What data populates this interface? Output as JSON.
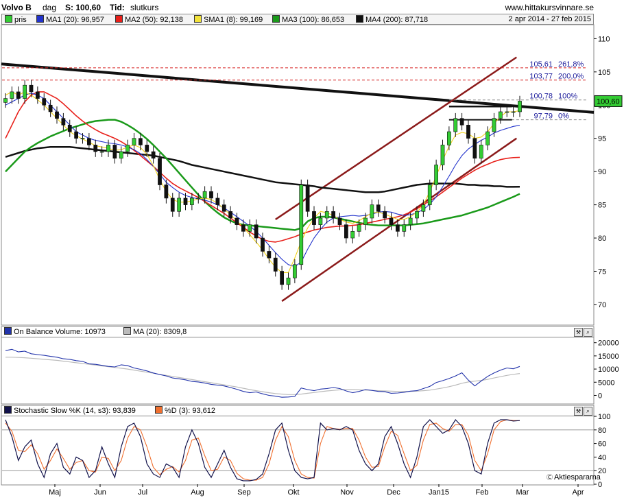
{
  "header": {
    "ticker": "Volvo B",
    "period": "dag",
    "last_label": "S: 100,60",
    "time_label": "Tid:",
    "time_value": "slutkurs",
    "site": "www.hittakursvinnare.se"
  },
  "legend": {
    "items": [
      {
        "label": "pris",
        "color": "#33cc33"
      },
      {
        "label": "MA1 (20): 96,957",
        "color": "#2233cc"
      },
      {
        "label": "MA2 (50): 92,138",
        "color": "#e8201a"
      },
      {
        "label": "SMA1 (8): 99,169",
        "color": "#f2e23a"
      },
      {
        "label": "MA3 (100): 86,653",
        "color": "#1a9a1a"
      },
      {
        "label": "MA4 (200): 87,718",
        "color": "#111111"
      }
    ],
    "date_range": "2 apr 2014 - 27 feb 2015"
  },
  "obv_legend": {
    "items": [
      {
        "label": "On Balance Volume: 10973",
        "color": "#2233aa"
      },
      {
        "label": "MA (20): 8309,8",
        "color": "#bbbbbb"
      }
    ]
  },
  "stoch_legend": {
    "items": [
      {
        "label": "Stochastic Slow %K (14, s3): 93,839",
        "color": "#11114a"
      },
      {
        "label": "%D (3): 93,612",
        "color": "#f07030"
      }
    ]
  },
  "watermark": "Aktiespararna",
  "chart_data": [
    {
      "type": "candlestick",
      "name": "Volvo B",
      "ylim": [
        67,
        112
      ],
      "yticks": [
        70,
        75,
        80,
        85,
        90,
        95,
        100,
        105,
        110
      ],
      "xticks": [
        "Maj",
        "Jun",
        "Jul",
        "Aug",
        "Sep",
        "Okt",
        "Nov",
        "Dec",
        "Jan15",
        "Feb",
        "Mar",
        "Apr"
      ],
      "last_price": "100,60",
      "fib_levels": [
        {
          "value": 105.61,
          "label_value": "105,61",
          "label_pct": "261,8%",
          "style": "dashed-red"
        },
        {
          "value": 103.77,
          "label_value": "103,77",
          "label_pct": "200,0%",
          "style": "dashed-red"
        },
        {
          "value": 100.78,
          "label_value": "100,78",
          "label_pct": "100%",
          "style": "dashed-gray"
        },
        {
          "value": 97.79,
          "label_value": "97,79",
          "label_pct": "0%",
          "style": "dashed-gray"
        }
      ],
      "close_series": [
        101,
        102,
        101,
        103,
        102,
        101,
        100,
        99,
        98,
        97,
        96,
        95,
        95,
        94,
        93,
        93,
        94,
        92,
        93,
        94,
        95,
        94,
        93,
        92,
        88,
        86,
        84,
        86,
        85,
        86,
        86,
        87,
        86,
        85,
        84,
        83,
        82,
        81,
        82,
        80,
        78,
        77,
        75,
        73,
        74,
        76,
        88,
        84,
        82,
        83,
        84,
        83,
        82,
        80,
        81,
        82,
        83,
        85,
        84,
        83,
        82,
        81,
        82,
        83,
        84,
        85,
        88,
        91,
        94,
        96,
        98,
        97,
        95,
        92,
        94,
        96,
        98,
        99,
        99,
        99,
        100.6
      ],
      "ma20": [
        100,
        100.5,
        101,
        101.5,
        101.8,
        101.5,
        101,
        100,
        99,
        98,
        97,
        96,
        95.5,
        95,
        94.7,
        94.5,
        94.3,
        94.2,
        94,
        93.7,
        93.3,
        92.7,
        91.8,
        90.8,
        89.6,
        88.4,
        87.6,
        86.9,
        86.4,
        86.1,
        85.9,
        85.7,
        85.4,
        85,
        84.5,
        83.9,
        83.2,
        82.5,
        81.8,
        81,
        80,
        78.9,
        77.8,
        76.8,
        76,
        75.7,
        76.4,
        78.3,
        80,
        81.3,
        82.4,
        83,
        83.2,
        83.3,
        83.4,
        83.3,
        83.4,
        83.6,
        83.9,
        84,
        83.9,
        83.6,
        83.4,
        83.5,
        83.8,
        84.3,
        85.1,
        86.2,
        87.7,
        89.3,
        91,
        92.4,
        93.4,
        94.1,
        94.7,
        95.2,
        95.8,
        96.2,
        96.5,
        96.8,
        96.957
      ],
      "sma8": [
        101.5,
        102,
        101.5,
        102,
        101.5,
        100.8,
        100,
        99,
        98,
        97,
        96,
        95.4,
        94.9,
        94.4,
        93.9,
        93.7,
        93.5,
        93.2,
        93.3,
        93.7,
        94,
        93.6,
        92.6,
        90.9,
        88.8,
        87,
        85.8,
        85.4,
        85.4,
        85.6,
        85.9,
        86,
        85.8,
        85.2,
        84.4,
        83.5,
        82.6,
        81.6,
        80.5,
        79.4,
        78.2,
        76.8,
        75.6,
        74.8,
        74.8,
        77,
        79.5,
        81.5,
        83,
        84,
        83.8,
        83.4,
        82.8,
        82.4,
        82.2,
        82.6,
        83.2,
        83.8,
        83.9,
        83.6,
        83.2,
        82.8,
        82.8,
        83.2,
        83.9,
        85,
        87,
        89.3,
        91.7,
        93.8,
        95.5,
        95.9,
        95.7,
        95,
        95.2,
        96,
        97.2,
        98.3,
        99,
        99,
        99.169
      ],
      "ma50": [
        95,
        97,
        99,
        100.5,
        101.5,
        102,
        102,
        101.5,
        101,
        100.2,
        99.3,
        98.4,
        97.6,
        96.9,
        96.3,
        95.8,
        95.4,
        95,
        94.5,
        93.9,
        93.2,
        92.4,
        91.6,
        90.8,
        89.9,
        89,
        88.2,
        87.6,
        87.1,
        86.6,
        86.1,
        85.5,
        84.9,
        84.3,
        83.7,
        83,
        82.3,
        81.6,
        80.9,
        80.3,
        79.8,
        79.5,
        79.4,
        79.6,
        79.9,
        80.2,
        80.6,
        80.9,
        81.2,
        81.4,
        81.6,
        81.7,
        81.8,
        81.8,
        81.9,
        82,
        82.2,
        82.4,
        82.6,
        82.8,
        83,
        83.2,
        83.5,
        83.9,
        84.4,
        85,
        85.6,
        86.2,
        86.9,
        87.6,
        88.3,
        89,
        89.6,
        90.2,
        90.7,
        91.1,
        91.5,
        91.8,
        92,
        92.1,
        92.138
      ],
      "ma100": [
        90,
        91,
        92,
        93,
        93.7,
        94.3,
        94.8,
        95.3,
        95.7,
        96.1,
        96.5,
        96.8,
        97.1,
        97.4,
        97.6,
        97.7,
        97.8,
        97.8,
        97.5,
        97,
        96.4,
        95.7,
        94.9,
        94,
        93,
        92,
        90.9,
        89.8,
        88.7,
        87.6,
        86.5,
        85.5,
        84.6,
        83.8,
        83.1,
        82.6,
        82.2,
        82,
        81.9,
        81.8,
        81.7,
        81.6,
        81.5,
        81.4,
        81.3,
        81.2,
        81.5,
        82.5,
        83,
        83.2,
        83.2,
        83.1,
        82.9,
        82.7,
        82.5,
        82.3,
        82.1,
        82,
        81.9,
        81.9,
        81.9,
        81.9,
        81.9,
        82,
        82.1,
        82.2,
        82.4,
        82.6,
        82.8,
        83,
        83.2,
        83.4,
        83.7,
        84,
        84.3,
        84.6,
        85,
        85.4,
        85.8,
        86.2,
        86.653
      ],
      "ma200": [
        92.2,
        92.5,
        92.8,
        93.1,
        93.3,
        93.5,
        93.6,
        93.7,
        93.7,
        93.7,
        93.7,
        93.6,
        93.5,
        93.4,
        93.3,
        93.2,
        93.1,
        93,
        92.9,
        92.8,
        92.7,
        92.6,
        92.5,
        92.4,
        92.2,
        92,
        91.8,
        91.6,
        91.3,
        91,
        90.8,
        90.6,
        90.4,
        90.2,
        90,
        89.8,
        89.6,
        89.4,
        89.2,
        89,
        88.8,
        88.6,
        88.4,
        88.3,
        88.2,
        88.1,
        88,
        87.9,
        87.8,
        87.6,
        87.5,
        87.4,
        87.3,
        87.2,
        87.1,
        87,
        86.9,
        86.9,
        86.9,
        87,
        87.2,
        87.4,
        87.6,
        87.8,
        88,
        88.1,
        88.2,
        88.2,
        88.2,
        88.2,
        88.2,
        88.1,
        88,
        88,
        87.9,
        87.9,
        87.8,
        87.8,
        87.7,
        87.7,
        87.718
      ]
    },
    {
      "type": "line",
      "name": "On Balance Volume",
      "ylim": [
        -3000,
        22000
      ],
      "yticks": [
        0,
        5000,
        10000,
        15000,
        20000
      ],
      "series": [
        {
          "name": "On Balance Volume",
          "values": [
            17000,
            17500,
            16500,
            16800,
            15800,
            15500,
            15200,
            14800,
            14500,
            13900,
            13700,
            13200,
            12900,
            12000,
            11800,
            11400,
            11000,
            10800,
            11600,
            11300,
            10400,
            9900,
            9300,
            8500,
            7900,
            7400,
            6600,
            6300,
            5900,
            5300,
            5100,
            4700,
            4200,
            3900,
            3600,
            3000,
            2300,
            1500,
            1000,
            1300,
            600,
            0,
            -300,
            -700,
            -600,
            -400,
            2800,
            2200,
            1800,
            2400,
            2600,
            3000,
            2600,
            1700,
            1000,
            1500,
            2200,
            1900,
            1500,
            1400,
            800,
            900,
            1200,
            1600,
            1800,
            2600,
            3400,
            4900,
            5600,
            6400,
            7400,
            8600,
            5800,
            3600,
            5500,
            7200,
            8500,
            9600,
            10400,
            10100,
            10973
          ]
        },
        {
          "name": "MA (20)",
          "values": [
            14500,
            14500,
            14400,
            14300,
            14100,
            13900,
            13700,
            13500,
            13300,
            13000,
            12700,
            12400,
            12100,
            11800,
            11500,
            11200,
            10900,
            10600,
            10300,
            10000,
            9600,
            9200,
            8800,
            8400,
            8000,
            7600,
            7200,
            6800,
            6400,
            6000,
            5600,
            5200,
            4800,
            4400,
            4000,
            3600,
            3200,
            2700,
            2200,
            1800,
            1400,
            1000,
            700,
            500,
            300,
            300,
            500,
            800,
            1100,
            1400,
            1700,
            1900,
            2100,
            2200,
            2200,
            2100,
            2000,
            1900,
            1800,
            1700,
            1600,
            1500,
            1500,
            1500,
            1600,
            1800,
            2000,
            2400,
            2800,
            3300,
            3900,
            4600,
            5100,
            5400,
            5700,
            6100,
            6600,
            7100,
            7600,
            8000,
            8309.8
          ]
        }
      ]
    },
    {
      "type": "line",
      "name": "Stochastic Slow",
      "ylim": [
        0,
        100
      ],
      "yticks": [
        0,
        20,
        40,
        60,
        80,
        100
      ],
      "reference_lines": [
        20,
        80
      ],
      "series": [
        {
          "name": "%K",
          "values": [
            95,
            70,
            35,
            55,
            65,
            30,
            10,
            45,
            60,
            25,
            15,
            40,
            35,
            10,
            20,
            55,
            30,
            10,
            55,
            85,
            90,
            70,
            30,
            15,
            10,
            30,
            25,
            10,
            55,
            80,
            60,
            25,
            10,
            30,
            50,
            25,
            8,
            5,
            5,
            7,
            15,
            45,
            80,
            90,
            50,
            20,
            10,
            8,
            10,
            90,
            80,
            82,
            80,
            85,
            80,
            50,
            30,
            20,
            30,
            70,
            85,
            60,
            30,
            10,
            40,
            85,
            95,
            85,
            75,
            80,
            95,
            85,
            60,
            20,
            15,
            60,
            90,
            95,
            95,
            93,
            93.839
          ]
        },
        {
          "name": "%D",
          "values": [
            90,
            78,
            50,
            48,
            58,
            45,
            22,
            35,
            52,
            38,
            22,
            32,
            35,
            20,
            18,
            40,
            38,
            20,
            35,
            68,
            85,
            80,
            55,
            25,
            14,
            22,
            26,
            18,
            35,
            65,
            68,
            42,
            20,
            22,
            40,
            35,
            16,
            8,
            6,
            6,
            10,
            30,
            65,
            85,
            70,
            35,
            15,
            10,
            9,
            60,
            85,
            82,
            81,
            82,
            82,
            65,
            40,
            25,
            26,
            55,
            78,
            72,
            45,
            20,
            28,
            65,
            88,
            90,
            82,
            78,
            88,
            88,
            72,
            35,
            20,
            45,
            80,
            92,
            95,
            94,
            93.612
          ]
        }
      ]
    }
  ]
}
